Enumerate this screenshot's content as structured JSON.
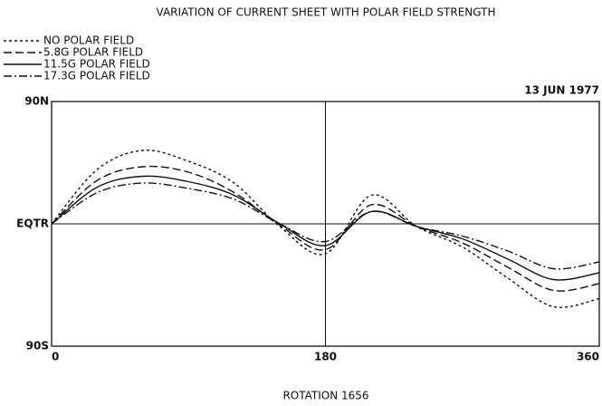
{
  "chart_data": {
    "type": "line",
    "title": "VARIATION OF CURRENT SHEET WITH POLAR FIELD STRENGTH",
    "annotation": "13 JUN 1977",
    "xlabel": "ROTATION 1656",
    "x": [
      0,
      30,
      60,
      90,
      120,
      150,
      180,
      210,
      240,
      270,
      300,
      330,
      360
    ],
    "series": [
      {
        "name": "NO POLAR FIELD",
        "color": "#111",
        "dash": "3 3",
        "values": [
          0,
          40,
          54,
          46,
          30,
          -2,
          -22,
          21,
          -2,
          -17,
          -40,
          -61,
          -55
        ]
      },
      {
        "name": "5.8G POLAR FIELD",
        "color": "#111",
        "dash": "9 4",
        "values": [
          0,
          32,
          42,
          38,
          23,
          -1,
          -19,
          14,
          -2,
          -14,
          -32,
          -49,
          -44
        ]
      },
      {
        "name": "11.5G POLAR FIELD",
        "color": "#111",
        "dash": "none",
        "values": [
          0,
          27,
          35,
          31,
          21,
          0,
          -16,
          9,
          -2,
          -11,
          -26,
          -41,
          -36
        ]
      },
      {
        "name": "17.3G POLAR FIELD",
        "color": "#111",
        "dash": "9 3 2 3",
        "values": [
          0,
          23,
          30,
          26,
          18,
          0,
          -13,
          9,
          -2,
          -9,
          -20,
          -33,
          -28
        ]
      }
    ],
    "xlim": [
      0,
      360
    ],
    "xticks": [
      0,
      180,
      360
    ],
    "ylim": [
      -90,
      90
    ],
    "yticks": [
      {
        "value": -90,
        "label": "90S"
      },
      {
        "value": 0,
        "label": "EQTR"
      },
      {
        "value": 90,
        "label": "90N"
      }
    ],
    "grid": true,
    "legend": "upper left"
  }
}
